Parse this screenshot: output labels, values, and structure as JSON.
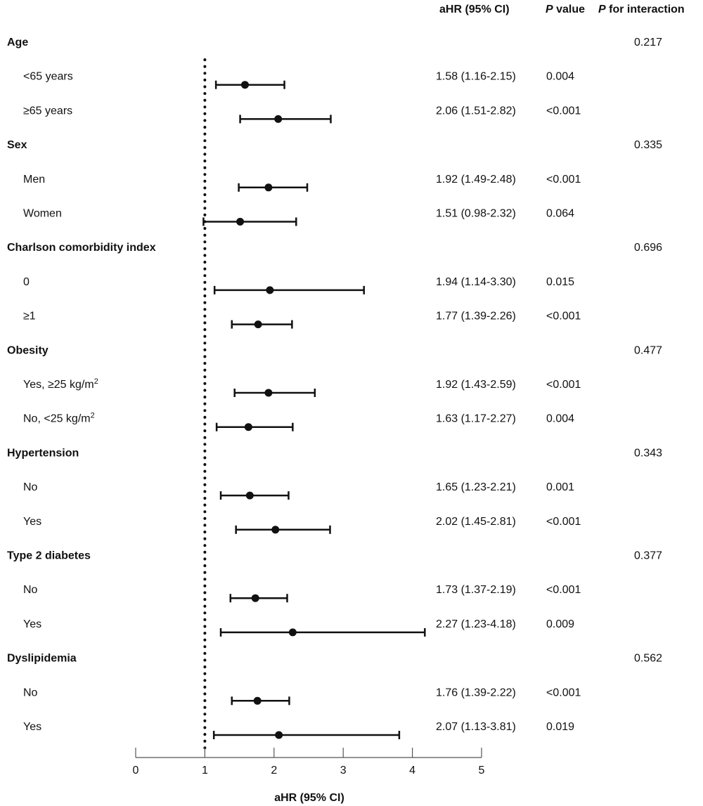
{
  "chart_data": {
    "type": "forest",
    "headers": {
      "estimate": "aHR (95% CI)",
      "p_value_italic": "P",
      "p_value_rest": " value",
      "p_interaction_italic": "P",
      "p_interaction_rest": " for interaction"
    },
    "xlabel": "aHR (95% CI)",
    "xlim": [
      0,
      5
    ],
    "xticks": [
      "0",
      "1",
      "2",
      "3",
      "4",
      "5"
    ],
    "reference_line": 1,
    "rows": [
      {
        "type": "group",
        "label": "Age",
        "p_interaction": "0.217"
      },
      {
        "type": "sub",
        "label": "<65 years",
        "hr": 1.58,
        "lo": 1.16,
        "hi": 2.15,
        "text": "1.58 (1.16-2.15)",
        "p": "0.004"
      },
      {
        "type": "sub",
        "label": "≥65 years",
        "hr": 2.06,
        "lo": 1.51,
        "hi": 2.82,
        "text": "2.06 (1.51-2.82)",
        "p": "<0.001"
      },
      {
        "type": "group",
        "label": "Sex",
        "p_interaction": "0.335"
      },
      {
        "type": "sub",
        "label": "Men",
        "hr": 1.92,
        "lo": 1.49,
        "hi": 2.48,
        "text": "1.92 (1.49-2.48)",
        "p": "<0.001"
      },
      {
        "type": "sub",
        "label": "Women",
        "hr": 1.51,
        "lo": 0.98,
        "hi": 2.32,
        "text": "1.51 (0.98-2.32)",
        "p": "0.064"
      },
      {
        "type": "group",
        "label": "Charlson comorbidity index",
        "p_interaction": "0.696"
      },
      {
        "type": "sub",
        "label": "0",
        "hr": 1.94,
        "lo": 1.14,
        "hi": 3.3,
        "text": "1.94 (1.14-3.30)",
        "p": "0.015"
      },
      {
        "type": "sub",
        "label": "≥1",
        "hr": 1.77,
        "lo": 1.39,
        "hi": 2.26,
        "text": "1.77 (1.39-2.26)",
        "p": "<0.001"
      },
      {
        "type": "group",
        "label": "Obesity",
        "p_interaction": "0.477"
      },
      {
        "type": "sub",
        "label": "Yes, ≥25 kg/m",
        "label_sup": "2",
        "hr": 1.92,
        "lo": 1.43,
        "hi": 2.59,
        "text": "1.92 (1.43-2.59)",
        "p": "<0.001"
      },
      {
        "type": "sub",
        "label": "No, <25 kg/m",
        "label_sup": "2",
        "hr": 1.63,
        "lo": 1.17,
        "hi": 2.27,
        "text": "1.63 (1.17-2.27)",
        "p": "0.004"
      },
      {
        "type": "group",
        "label": "Hypertension",
        "p_interaction": "0.343"
      },
      {
        "type": "sub",
        "label": "No",
        "hr": 1.65,
        "lo": 1.23,
        "hi": 2.21,
        "text": "1.65 (1.23-2.21)",
        "p": "0.001"
      },
      {
        "type": "sub",
        "label": "Yes",
        "hr": 2.02,
        "lo": 1.45,
        "hi": 2.81,
        "text": "2.02 (1.45-2.81)",
        "p": "<0.001"
      },
      {
        "type": "group",
        "label": "Type 2 diabetes",
        "p_interaction": "0.377"
      },
      {
        "type": "sub",
        "label": "No",
        "hr": 1.73,
        "lo": 1.37,
        "hi": 2.19,
        "text": "1.73 (1.37-2.19)",
        "p": "<0.001"
      },
      {
        "type": "sub",
        "label": "Yes",
        "hr": 2.27,
        "lo": 1.23,
        "hi": 4.18,
        "text": "2.27 (1.23-4.18)",
        "p": "0.009"
      },
      {
        "type": "group",
        "label": "Dyslipidemia",
        "p_interaction": "0.562"
      },
      {
        "type": "sub",
        "label": "No",
        "hr": 1.76,
        "lo": 1.39,
        "hi": 2.22,
        "text": "1.76 (1.39-2.22)",
        "p": "<0.001"
      },
      {
        "type": "sub",
        "label": "Yes",
        "hr": 2.07,
        "lo": 1.13,
        "hi": 3.81,
        "text": "2.07 (1.13-3.81)",
        "p": "0.019"
      }
    ]
  }
}
